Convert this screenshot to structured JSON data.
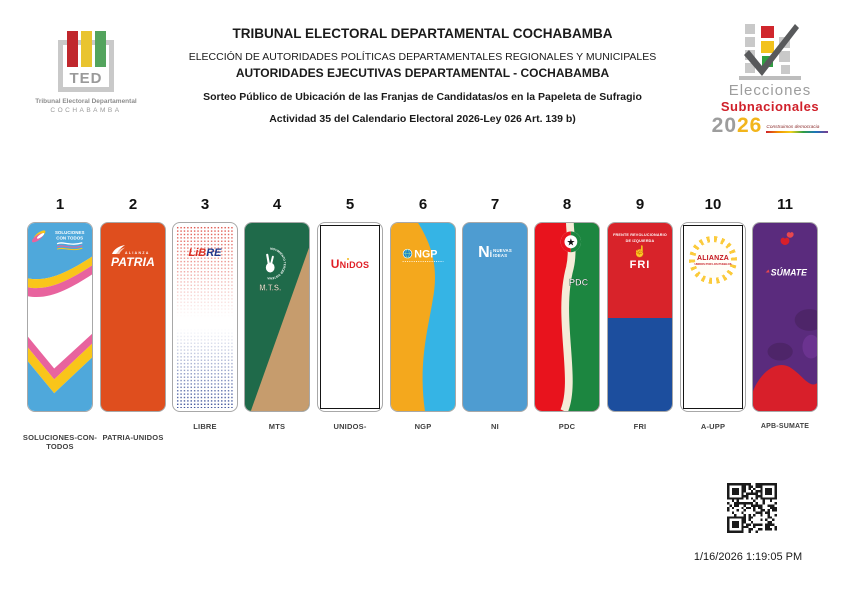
{
  "header": {
    "ted_logo": {
      "acronym": "TED",
      "caption1": "Tribunal Electoral Departamental",
      "caption2": "COCHABAMBA",
      "bar_colors": {
        "red": "#c0272d",
        "yellow": "#e9c42f",
        "green": "#53a45d"
      }
    },
    "title": "TRIBUNAL ELECTORAL DEPARTAMENTAL COCHABAMBA",
    "subtitle1": "ELECCIÓN DE AUTORIDADES POLÍTICAS DEPARTAMENTALES REGIONALES Y MUNICIPALES",
    "subtitle2": "AUTORIDADES EJECUTIVAS DEPARTAMENTAL - COCHABAMBA",
    "subtitle3": "Sorteo Público de Ubicación de las Franjas de Candidatas/os en la Papeleta de Sufragio",
    "subtitle4": "Actividad 35 del Calendario Electoral 2026-Ley 026 Art. 139 b)",
    "elections_logo": {
      "line1": "Elecciones",
      "line2": "Subnacionales",
      "year_20": "20",
      "year_26": "26",
      "tagline": "Construimos democracia"
    }
  },
  "ballot": {
    "strips": [
      {
        "number": "1",
        "label": "SOLUCIONES-CON-TODOS",
        "logo_line1": "SOLUCIONES",
        "logo_line2": "CON TODOS",
        "colors": {
          "blue": "#4fa8db",
          "yellow": "#f9c51a",
          "pink": "#e8639e"
        }
      },
      {
        "number": "2",
        "label": "PATRIA-UNIDOS",
        "logo_top": "ALIANZA",
        "logo_main": "PATRIA",
        "colors": {
          "orange": "#df4e1e"
        }
      },
      {
        "number": "3",
        "label": "LIBRE",
        "logo_red": "LiB",
        "logo_blue": "RE",
        "colors": {
          "red": "#d93025",
          "blue": "#20398c"
        }
      },
      {
        "number": "4",
        "label": "MTS",
        "ring_text": "MOVIMIENTO TERCER SISTEMA",
        "logo_main": "M.T.S.",
        "colors": {
          "green": "#1f6a4a",
          "tan": "#c69c6d"
        }
      },
      {
        "number": "5",
        "label": "UNIDOS-",
        "logo_u": "U",
        "logo_n": "N",
        "logo_i": "ı",
        "logo_rest": "DOS",
        "colors": {
          "red": "#e01f26",
          "yellow": "#f5b91a"
        }
      },
      {
        "number": "6",
        "label": "NGP",
        "logo_main": "NGP",
        "colors": {
          "orange": "#f4a81d",
          "blue": "#35b4e5"
        }
      },
      {
        "number": "7",
        "label": "NI",
        "logo_n": "N",
        "logo_i": "i",
        "logo_line1": "NUEVAS",
        "logo_line2": "IDEAS",
        "colors": {
          "blue": "#4e9cd1"
        }
      },
      {
        "number": "8",
        "label": "PDC",
        "logo_main": "PDC",
        "star": "★",
        "colors": {
          "red": "#e8131d",
          "green": "#1c8640",
          "cream": "#f4ecd8"
        }
      },
      {
        "number": "9",
        "label": "FRI",
        "top_line1": "FRENTE REVOLUCIONARIO",
        "top_line2": "DE IZQUIERDA",
        "hand": "☝",
        "logo_main": "FRI",
        "colors": {
          "red": "#d8232a",
          "blue": "#1c4e9e"
        }
      },
      {
        "number": "10",
        "label": "A-UPP",
        "logo_main": "ALIANZA",
        "logo_sub": "UNIDOS POR LOS PUEBLOS",
        "colors": {
          "yellow": "#fbcb3c",
          "red": "#c4161c"
        }
      },
      {
        "number": "11",
        "label": "APB-SUMATE",
        "logo_main": "SÚMATE",
        "colors": {
          "purple": "#5a2b7d",
          "red": "#d81f2a"
        }
      }
    ]
  },
  "footer": {
    "timestamp": "1/16/2026 1:19:05 PM"
  }
}
